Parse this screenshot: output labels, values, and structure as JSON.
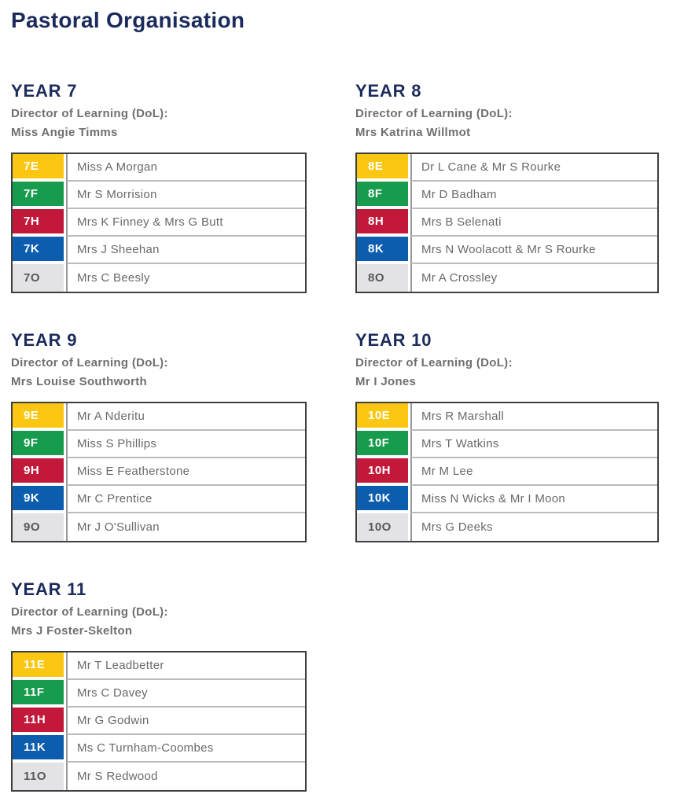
{
  "page": {
    "title": "Pastoral Organisation"
  },
  "labels": {
    "dol": "Director of Learning (DoL):"
  },
  "colors": {
    "navy": "#1b2b5b",
    "text_gray": "#6e6f71",
    "yellow": "#fbc713",
    "green": "#179b4d",
    "red": "#c2183a",
    "blue": "#0d5dae",
    "gray": "#e3e3e5",
    "table_border": "#3d3e40",
    "row_divider": "#babbbd",
    "column_divider": "#97989a"
  },
  "sections": [
    {
      "heading": "YEAR 7",
      "dol_label": "Director of Learning (DoL):",
      "dol_name": "Miss Angie Timms",
      "rows": [
        {
          "code": "7E",
          "color": "yellow",
          "tutor": "Miss A Morgan"
        },
        {
          "code": "7F",
          "color": "green",
          "tutor": "Mr S Morrision"
        },
        {
          "code": "7H",
          "color": "red",
          "tutor": "Mrs K Finney & Mrs G Butt"
        },
        {
          "code": "7K",
          "color": "blue",
          "tutor": "Mrs J Sheehan"
        },
        {
          "code": "7O",
          "color": "gray",
          "tutor": "Mrs C Beesly"
        }
      ]
    },
    {
      "heading": "YEAR 8",
      "dol_label": "Director of Learning (DoL):",
      "dol_name": "Mrs Katrina Willmot",
      "rows": [
        {
          "code": "8E",
          "color": "yellow",
          "tutor": "Dr L Cane & Mr S Rourke"
        },
        {
          "code": "8F",
          "color": "green",
          "tutor": "Mr D Badham"
        },
        {
          "code": "8H",
          "color": "red",
          "tutor": "Mrs B Selenati"
        },
        {
          "code": "8K",
          "color": "blue",
          "tutor": "Mrs N Woolacott & Mr S Rourke"
        },
        {
          "code": "8O",
          "color": "gray",
          "tutor": "Mr A Crossley"
        }
      ]
    },
    {
      "heading": "YEAR 9",
      "dol_label": "Director of Learning (DoL):",
      "dol_name": "Mrs Louise Southworth",
      "rows": [
        {
          "code": "9E",
          "color": "yellow",
          "tutor": "Mr A Nderitu"
        },
        {
          "code": "9F",
          "color": "green",
          "tutor": "Miss S Phillips"
        },
        {
          "code": "9H",
          "color": "red",
          "tutor": "Miss E Featherstone"
        },
        {
          "code": "9K",
          "color": "blue",
          "tutor": "Mr C Prentice"
        },
        {
          "code": "9O",
          "color": "gray",
          "tutor": "Mr J O'Sullivan"
        }
      ]
    },
    {
      "heading": "YEAR 10",
      "dol_label": "Director of Learning (DoL):",
      "dol_name": "Mr I Jones",
      "rows": [
        {
          "code": "10E",
          "color": "yellow",
          "tutor": "Mrs R Marshall"
        },
        {
          "code": "10F",
          "color": "green",
          "tutor": "Mrs T Watkins"
        },
        {
          "code": "10H",
          "color": "red",
          "tutor": "Mr M Lee"
        },
        {
          "code": "10K",
          "color": "blue",
          "tutor": "Miss N Wicks & Mr I Moon"
        },
        {
          "code": "10O",
          "color": "gray",
          "tutor": "Mrs G Deeks"
        }
      ]
    },
    {
      "heading": "YEAR 11",
      "dol_label": "Director of Learning (DoL):",
      "dol_name": "Mrs J Foster-Skelton",
      "rows": [
        {
          "code": "11E",
          "color": "yellow",
          "tutor": "Mr T Leadbetter"
        },
        {
          "code": "11F",
          "color": "green",
          "tutor": "Mrs C Davey"
        },
        {
          "code": "11H",
          "color": "red",
          "tutor": "Mr G Godwin"
        },
        {
          "code": "11K",
          "color": "blue",
          "tutor": "Ms C Turnham-Coombes"
        },
        {
          "code": "11O",
          "color": "gray",
          "tutor": "Mr S Redwood"
        }
      ]
    }
  ]
}
